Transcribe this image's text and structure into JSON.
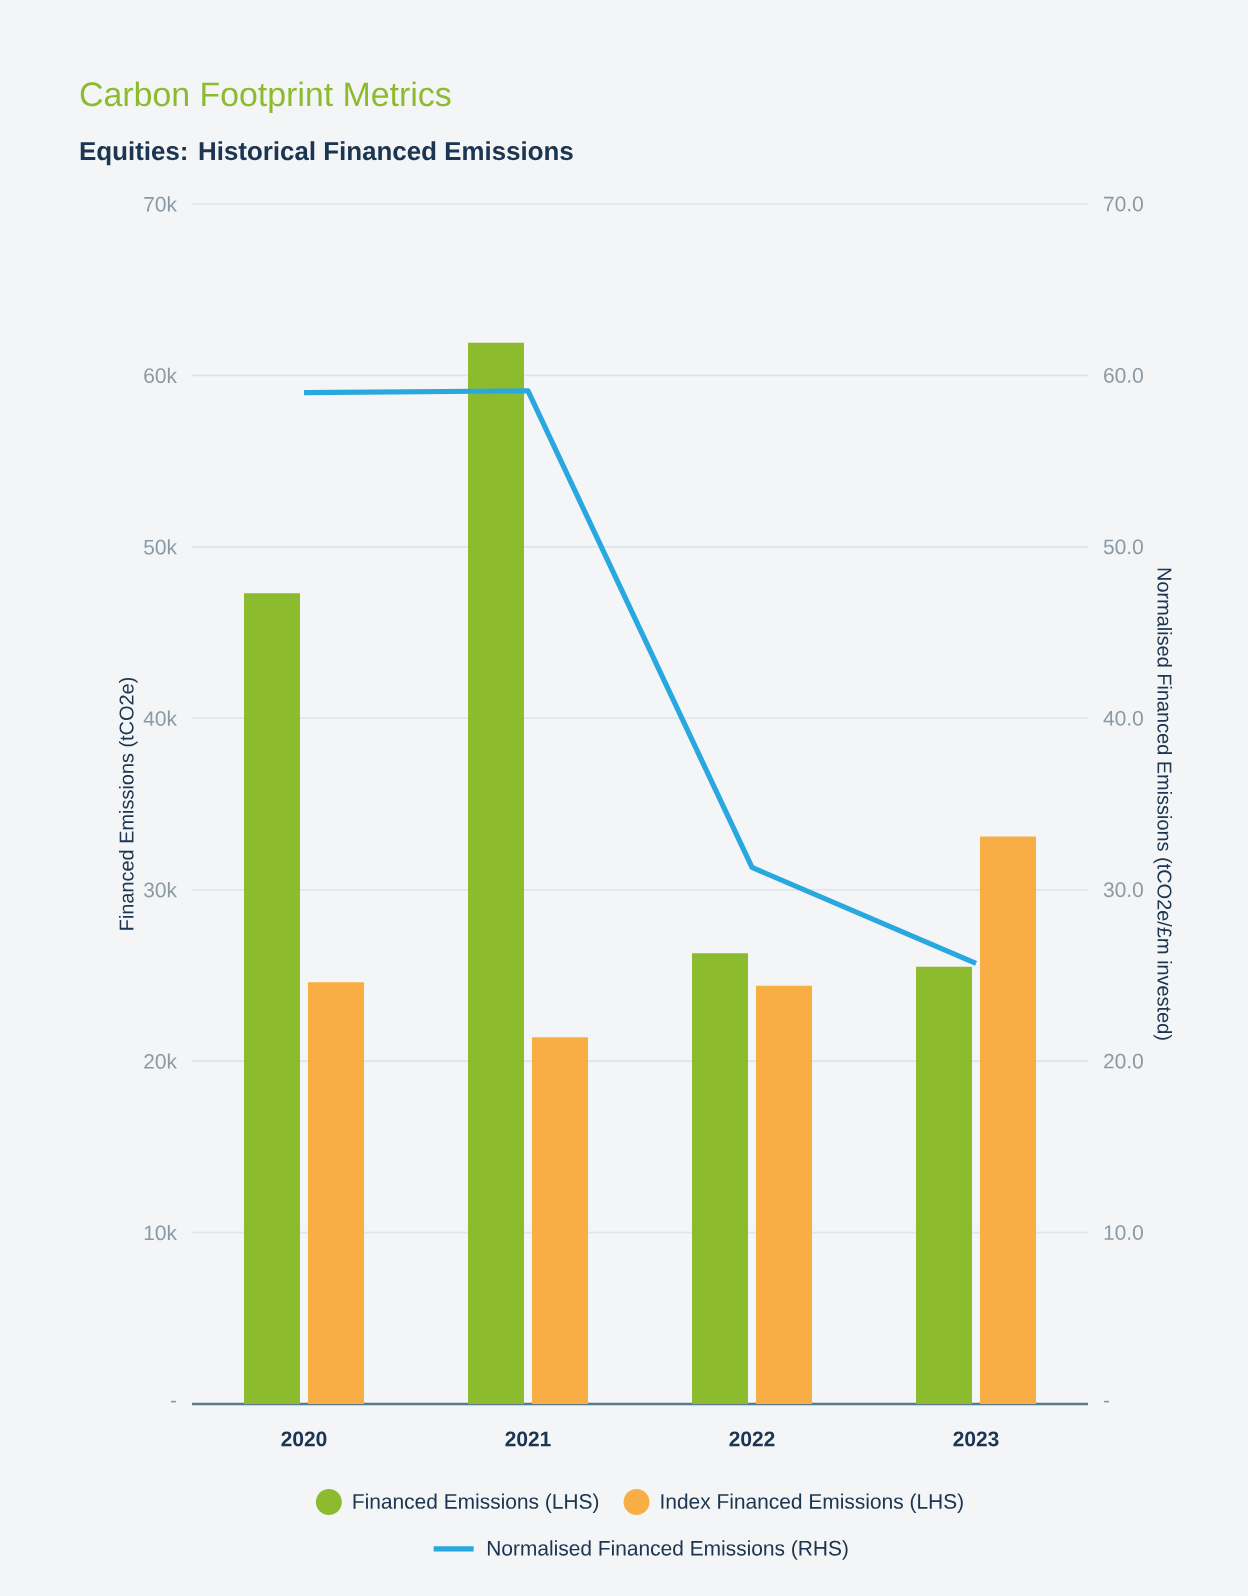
{
  "chart_data": {
    "type": "bar",
    "title": "Carbon Footprint Metrics",
    "subtitle": "Equities: Historical Financed Emissions",
    "ylabel": "Financed Emissions (tCO2e)",
    "y2label": "Normalised Financed Emissions (tCO2e/£m invested)",
    "categories": [
      "2020",
      "2021",
      "2022",
      "2023"
    ],
    "series": [
      {
        "name": "Financed Emissions (LHS)",
        "type": "bar",
        "color": "#8dbb2e",
        "values": [
          47300,
          61900,
          26300,
          25500
        ]
      },
      {
        "name": "Index Financed Emissions (LHS)",
        "type": "bar",
        "color": "#f8ae45",
        "values": [
          24600,
          21400,
          24400,
          33100
        ]
      },
      {
        "name": "Normalised Financed Emissions (RHS)",
        "type": "line",
        "axis": "y2",
        "color": "#29a8e0",
        "values": [
          59.0,
          59.1,
          31.3,
          25.7
        ]
      }
    ],
    "ylim": [
      0,
      70000
    ],
    "yticks": [
      {
        "value": 0,
        "label": "-"
      },
      {
        "value": 10000,
        "label": "10k"
      },
      {
        "value": 20000,
        "label": "20k"
      },
      {
        "value": 30000,
        "label": "30k"
      },
      {
        "value": 40000,
        "label": "40k"
      },
      {
        "value": 50000,
        "label": "50k"
      },
      {
        "value": 60000,
        "label": "60k"
      },
      {
        "value": 70000,
        "label": "70k"
      }
    ],
    "y2lim": [
      0,
      70
    ],
    "y2ticks": [
      {
        "value": 0,
        "label": "-"
      },
      {
        "value": 10,
        "label": "10.0"
      },
      {
        "value": 20,
        "label": "20.0"
      },
      {
        "value": 30,
        "label": "30.0"
      },
      {
        "value": 40,
        "label": "40.0"
      },
      {
        "value": 50,
        "label": "50.0"
      },
      {
        "value": 60,
        "label": "60.0"
      },
      {
        "value": 70,
        "label": "70.0"
      }
    ],
    "grid": "y",
    "legend": "bottom"
  }
}
